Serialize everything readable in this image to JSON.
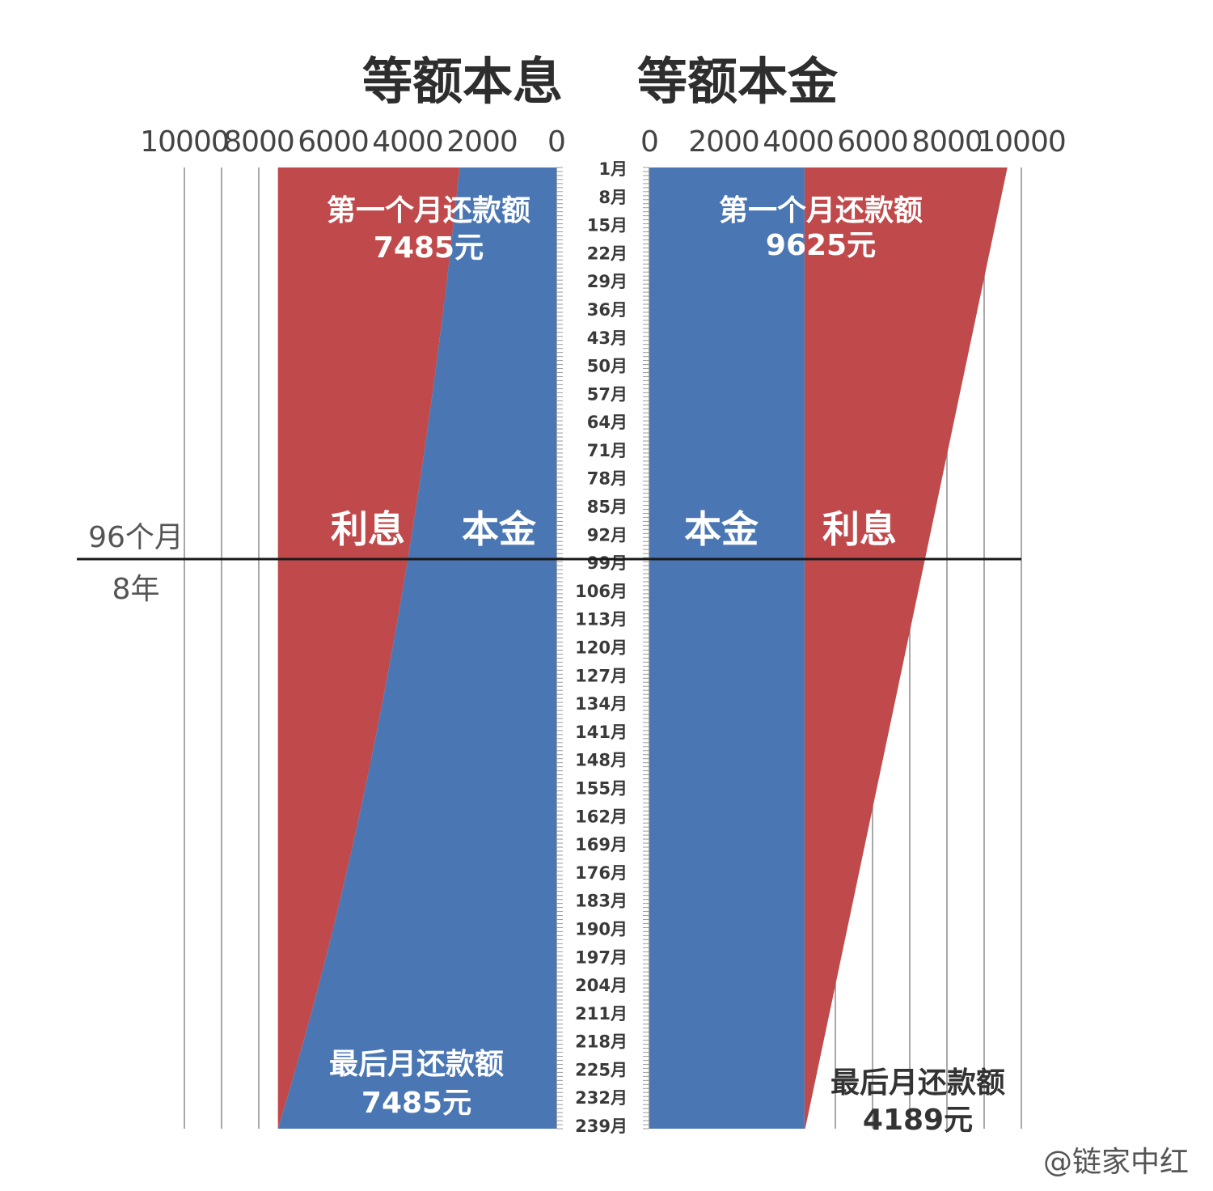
{
  "chart_data": [
    {
      "type": "area",
      "title": "等额本息",
      "orientation": "horizontal",
      "x_direction": "reversed",
      "xlim": [
        0,
        10000
      ],
      "x_ticks": [
        "10000",
        "8000",
        "6000",
        "4000",
        "2000",
        "0"
      ],
      "series": [
        {
          "name": "本金",
          "color": "#4a77b4",
          "month": [
            1,
            240
          ],
          "value": [
            2600,
            7485
          ]
        },
        {
          "name": "利息",
          "color": "#c0494b",
          "month": [
            1,
            240
          ],
          "value": [
            4885,
            0
          ]
        }
      ],
      "total_payment": 7485,
      "annotations": {
        "first_label": "第一个月还款额",
        "first_value": "7485元",
        "last_label": "最后月还款额",
        "last_value": "7485元"
      }
    },
    {
      "type": "area",
      "title": "等额本金",
      "orientation": "horizontal",
      "xlim": [
        0,
        10000
      ],
      "x_ticks": [
        "0",
        "2000",
        "4000",
        "6000",
        "8000",
        "10000"
      ],
      "series": [
        {
          "name": "本金",
          "color": "#4a77b4",
          "month": [
            1,
            240
          ],
          "value": [
            4170,
            4170
          ]
        },
        {
          "name": "利息",
          "color": "#c0494b",
          "month": [
            1,
            240
          ],
          "value": [
            5455,
            19
          ]
        }
      ],
      "annotations": {
        "first_label": "第一个月还款额",
        "first_value": "9625元",
        "last_label": "最后月还款额",
        "last_value": "4189元"
      }
    }
  ],
  "month_axis": {
    "labels": [
      "1月",
      "8月",
      "15月",
      "22月",
      "29月",
      "36月",
      "43月",
      "50月",
      "57月",
      "64月",
      "71月",
      "78月",
      "85月",
      "92月",
      "99月",
      "106月",
      "113月",
      "120月",
      "127月",
      "134月",
      "141月",
      "148月",
      "155月",
      "162月",
      "169月",
      "176月",
      "183月",
      "190月",
      "197月",
      "204月",
      "211月",
      "218月",
      "225月",
      "232月",
      "239月"
    ]
  },
  "divider": {
    "label_top": "96个月",
    "label_bottom": "8年"
  },
  "watermark": "@链家中红"
}
